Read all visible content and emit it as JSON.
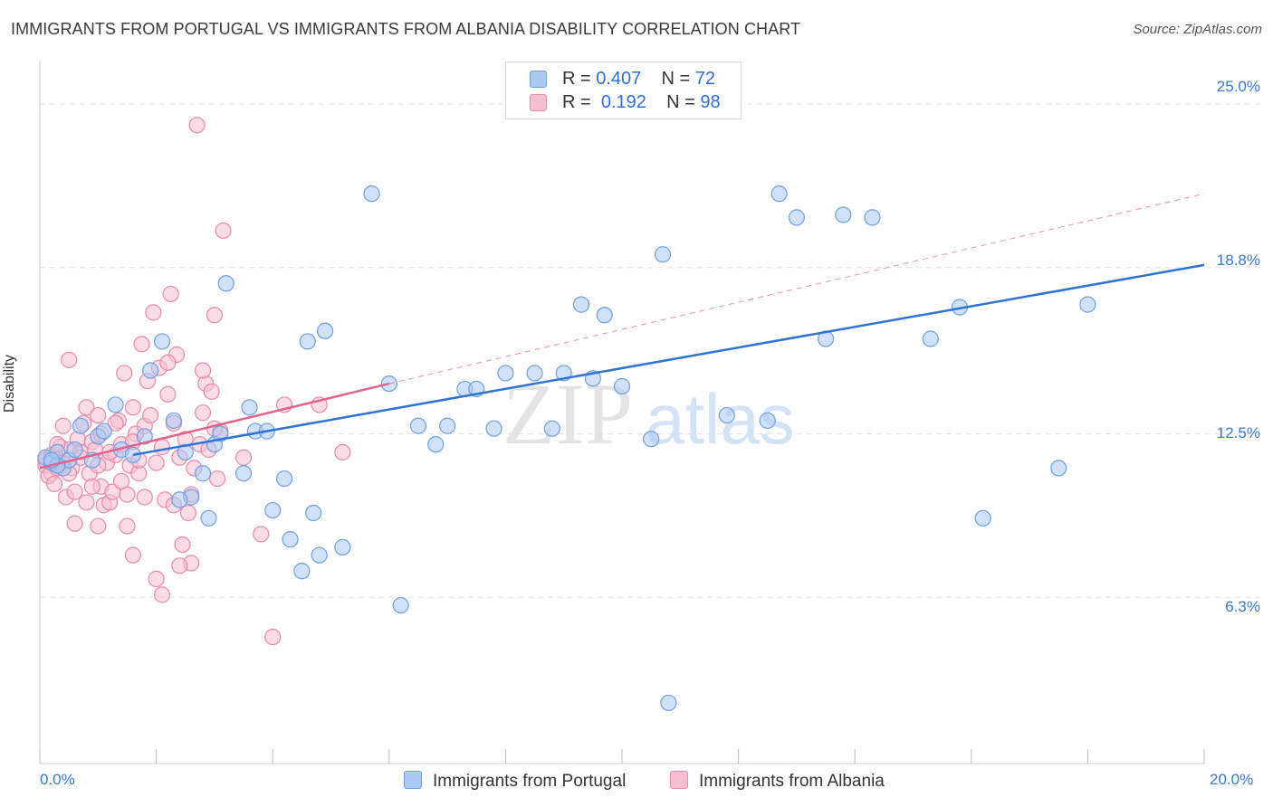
{
  "title": "IMMIGRANTS FROM PORTUGAL VS IMMIGRANTS FROM ALBANIA DISABILITY CORRELATION CHART",
  "source": "Source: ZipAtlas.com",
  "watermark": {
    "zip": "ZIP",
    "atlas": "atlas"
  },
  "legend": {
    "r_label": "R =",
    "n_label": "N =",
    "rows": [
      {
        "r": "0.407",
        "n": "72"
      },
      {
        "r": "0.192",
        "n": "98"
      }
    ]
  },
  "bottom_legend": [
    "Immigrants from Portugal",
    "Immigrants from Albania"
  ],
  "colors": {
    "blue_fill": "#aac9f3",
    "blue_stroke": "#6f9fe0",
    "blue_line": "#2f73d6",
    "pink_fill": "#f6bfd1",
    "pink_stroke": "#e98aa9",
    "pink_line": "#e0628d",
    "tick_text": "#3a78c9",
    "grid": "#e2e2e2"
  },
  "chart_data": {
    "type": "scatter",
    "title": "IMMIGRANTS FROM PORTUGAL VS IMMIGRANTS FROM ALBANIA DISABILITY CORRELATION CHART",
    "xlabel": "",
    "ylabel": "Disability",
    "xlim": [
      0,
      20
    ],
    "ylim": [
      0,
      26.2
    ],
    "x_tick_labels": [
      "0.0%",
      "20.0%"
    ],
    "y_ticks": [
      6.3,
      12.5,
      18.8,
      25.0
    ],
    "y_tick_labels": [
      "6.3%",
      "12.5%",
      "18.8%",
      "25.0%"
    ],
    "series": [
      {
        "name": "Immigrants from Portugal",
        "r": 0.407,
        "n": 72,
        "trend": {
          "x": [
            1.6,
            20.0
          ],
          "y": [
            11.7,
            18.9
          ],
          "style": "solid"
        },
        "points": [
          [
            0.1,
            11.6
          ],
          [
            0.2,
            11.4
          ],
          [
            0.3,
            11.8
          ],
          [
            0.4,
            11.2
          ],
          [
            0.5,
            11.5
          ],
          [
            0.3,
            11.3
          ],
          [
            0.6,
            11.9
          ],
          [
            0.2,
            11.5
          ],
          [
            0.7,
            12.8
          ],
          [
            0.9,
            11.5
          ],
          [
            1.0,
            12.4
          ],
          [
            1.1,
            12.6
          ],
          [
            1.3,
            13.6
          ],
          [
            1.4,
            11.9
          ],
          [
            1.6,
            11.7
          ],
          [
            1.8,
            12.4
          ],
          [
            1.9,
            14.9
          ],
          [
            2.1,
            16.0
          ],
          [
            2.3,
            13.0
          ],
          [
            2.5,
            11.8
          ],
          [
            2.6,
            10.1
          ],
          [
            2.4,
            10.0
          ],
          [
            2.8,
            11.0
          ],
          [
            2.9,
            9.3
          ],
          [
            3.0,
            12.1
          ],
          [
            3.1,
            12.5
          ],
          [
            3.2,
            18.2
          ],
          [
            3.5,
            11.0
          ],
          [
            3.6,
            13.5
          ],
          [
            3.7,
            12.6
          ],
          [
            3.9,
            12.6
          ],
          [
            4.0,
            9.6
          ],
          [
            4.2,
            10.8
          ],
          [
            4.3,
            8.5
          ],
          [
            4.5,
            7.3
          ],
          [
            4.6,
            16.0
          ],
          [
            4.7,
            9.5
          ],
          [
            4.8,
            7.9
          ],
          [
            4.9,
            16.4
          ],
          [
            5.2,
            8.2
          ],
          [
            5.7,
            21.6
          ],
          [
            6.0,
            14.4
          ],
          [
            6.2,
            6.0
          ],
          [
            6.5,
            12.8
          ],
          [
            6.8,
            12.1
          ],
          [
            7.0,
            12.8
          ],
          [
            7.3,
            14.2
          ],
          [
            7.5,
            14.2
          ],
          [
            7.8,
            12.7
          ],
          [
            8.0,
            14.8
          ],
          [
            8.5,
            14.8
          ],
          [
            8.8,
            12.7
          ],
          [
            9.0,
            14.8
          ],
          [
            9.3,
            17.4
          ],
          [
            9.5,
            14.6
          ],
          [
            9.7,
            17.0
          ],
          [
            10.0,
            14.3
          ],
          [
            10.5,
            12.3
          ],
          [
            10.7,
            19.3
          ],
          [
            10.8,
            2.3
          ],
          [
            11.8,
            13.2
          ],
          [
            12.5,
            13.0
          ],
          [
            12.7,
            21.6
          ],
          [
            13.0,
            20.7
          ],
          [
            13.5,
            16.1
          ],
          [
            13.8,
            20.8
          ],
          [
            14.3,
            20.7
          ],
          [
            15.3,
            16.1
          ],
          [
            15.8,
            17.3
          ],
          [
            16.2,
            9.3
          ],
          [
            17.5,
            11.2
          ],
          [
            18.0,
            17.4
          ]
        ]
      },
      {
        "name": "Immigrants from Albania",
        "r": 0.192,
        "n": 98,
        "trend": {
          "x": [
            0.0,
            6.0
          ],
          "y": [
            11.2,
            14.4
          ],
          "style": "solid"
        },
        "trend_extended": {
          "x": [
            6.0,
            20.0
          ],
          "y": [
            14.4,
            21.6
          ],
          "style": "dashed"
        },
        "points": [
          [
            0.1,
            11.3
          ],
          [
            0.2,
            11.0
          ],
          [
            0.15,
            10.9
          ],
          [
            0.3,
            11.6
          ],
          [
            0.35,
            12.0
          ],
          [
            0.4,
            11.4
          ],
          [
            0.25,
            10.6
          ],
          [
            0.5,
            11.9
          ],
          [
            0.45,
            10.1
          ],
          [
            0.55,
            11.2
          ],
          [
            0.6,
            10.3
          ],
          [
            0.65,
            12.3
          ],
          [
            0.7,
            11.8
          ],
          [
            0.75,
            12.9
          ],
          [
            0.8,
            13.5
          ],
          [
            0.85,
            11.0
          ],
          [
            0.9,
            12.2
          ],
          [
            0.95,
            11.9
          ],
          [
            1.0,
            13.2
          ],
          [
            1.05,
            10.5
          ],
          [
            1.1,
            9.8
          ],
          [
            1.15,
            11.4
          ],
          [
            1.2,
            9.9
          ],
          [
            1.25,
            10.3
          ],
          [
            1.3,
            11.7
          ],
          [
            1.35,
            13.0
          ],
          [
            1.4,
            12.1
          ],
          [
            1.45,
            14.8
          ],
          [
            1.5,
            10.2
          ],
          [
            1.55,
            11.3
          ],
          [
            1.6,
            13.5
          ],
          [
            1.65,
            12.5
          ],
          [
            1.7,
            11.0
          ],
          [
            1.75,
            15.9
          ],
          [
            1.8,
            12.8
          ],
          [
            1.85,
            14.5
          ],
          [
            1.9,
            13.2
          ],
          [
            1.95,
            17.1
          ],
          [
            2.0,
            11.4
          ],
          [
            2.05,
            15.0
          ],
          [
            2.1,
            12.0
          ],
          [
            2.15,
            10.0
          ],
          [
            2.2,
            14.0
          ],
          [
            2.25,
            17.8
          ],
          [
            2.3,
            9.8
          ],
          [
            2.35,
            15.5
          ],
          [
            2.4,
            11.6
          ],
          [
            2.45,
            8.3
          ],
          [
            2.5,
            12.3
          ],
          [
            2.55,
            9.5
          ],
          [
            2.6,
            7.6
          ],
          [
            2.65,
            11.2
          ],
          [
            2.7,
            24.2
          ],
          [
            2.75,
            12.1
          ],
          [
            2.8,
            13.3
          ],
          [
            2.85,
            14.4
          ],
          [
            2.9,
            11.9
          ],
          [
            2.95,
            14.1
          ],
          [
            3.0,
            17.0
          ],
          [
            3.05,
            10.8
          ],
          [
            3.1,
            12.6
          ],
          [
            3.15,
            20.2
          ],
          [
            3.5,
            11.6
          ],
          [
            3.8,
            8.7
          ],
          [
            4.0,
            4.8
          ],
          [
            4.2,
            13.6
          ],
          [
            4.8,
            13.6
          ],
          [
            5.2,
            11.8
          ],
          [
            0.3,
            11.2
          ],
          [
            0.5,
            15.3
          ],
          [
            0.6,
            9.1
          ],
          [
            0.8,
            9.9
          ],
          [
            0.9,
            10.5
          ],
          [
            1.0,
            9.0
          ],
          [
            1.05,
            12.5
          ],
          [
            1.2,
            11.8
          ],
          [
            1.3,
            12.9
          ],
          [
            1.5,
            9.0
          ],
          [
            1.6,
            7.9
          ],
          [
            1.7,
            11.5
          ],
          [
            1.8,
            10.1
          ],
          [
            2.0,
            7.0
          ],
          [
            2.1,
            6.4
          ],
          [
            2.2,
            15.2
          ],
          [
            2.4,
            7.5
          ],
          [
            2.6,
            10.2
          ],
          [
            2.8,
            14.9
          ],
          [
            3.0,
            12.7
          ],
          [
            0.2,
            11.7
          ],
          [
            0.4,
            12.8
          ],
          [
            0.7,
            11.6
          ],
          [
            0.1,
            11.5
          ],
          [
            0.3,
            12.1
          ],
          [
            0.5,
            11.0
          ],
          [
            1.0,
            11.3
          ],
          [
            1.4,
            10.7
          ],
          [
            1.6,
            12.2
          ],
          [
            2.3,
            12.9
          ]
        ]
      }
    ]
  }
}
